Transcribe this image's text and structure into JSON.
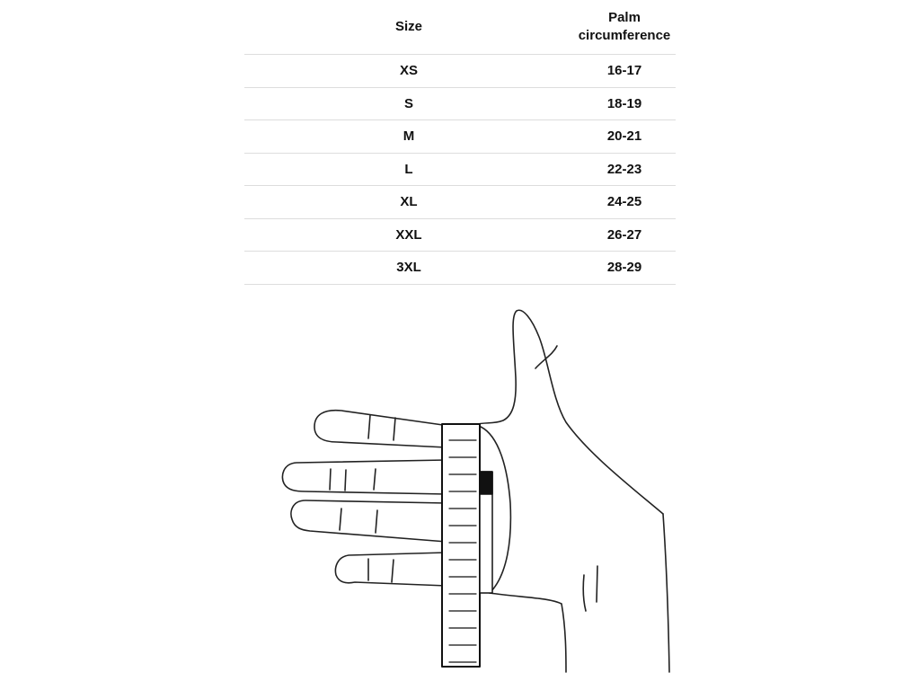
{
  "table": {
    "headers": [
      "Size",
      "Palm circumference"
    ],
    "rows": [
      [
        "XS",
        "16-17"
      ],
      [
        "S",
        "18-19"
      ],
      [
        "M",
        "20-21"
      ],
      [
        "L",
        "22-23"
      ],
      [
        "XL",
        "24-25"
      ],
      [
        "XXL",
        "26-27"
      ],
      [
        "3XL",
        "28-29"
      ]
    ]
  },
  "illustration": {
    "icon": "hand-with-measuring-tape-icon"
  }
}
